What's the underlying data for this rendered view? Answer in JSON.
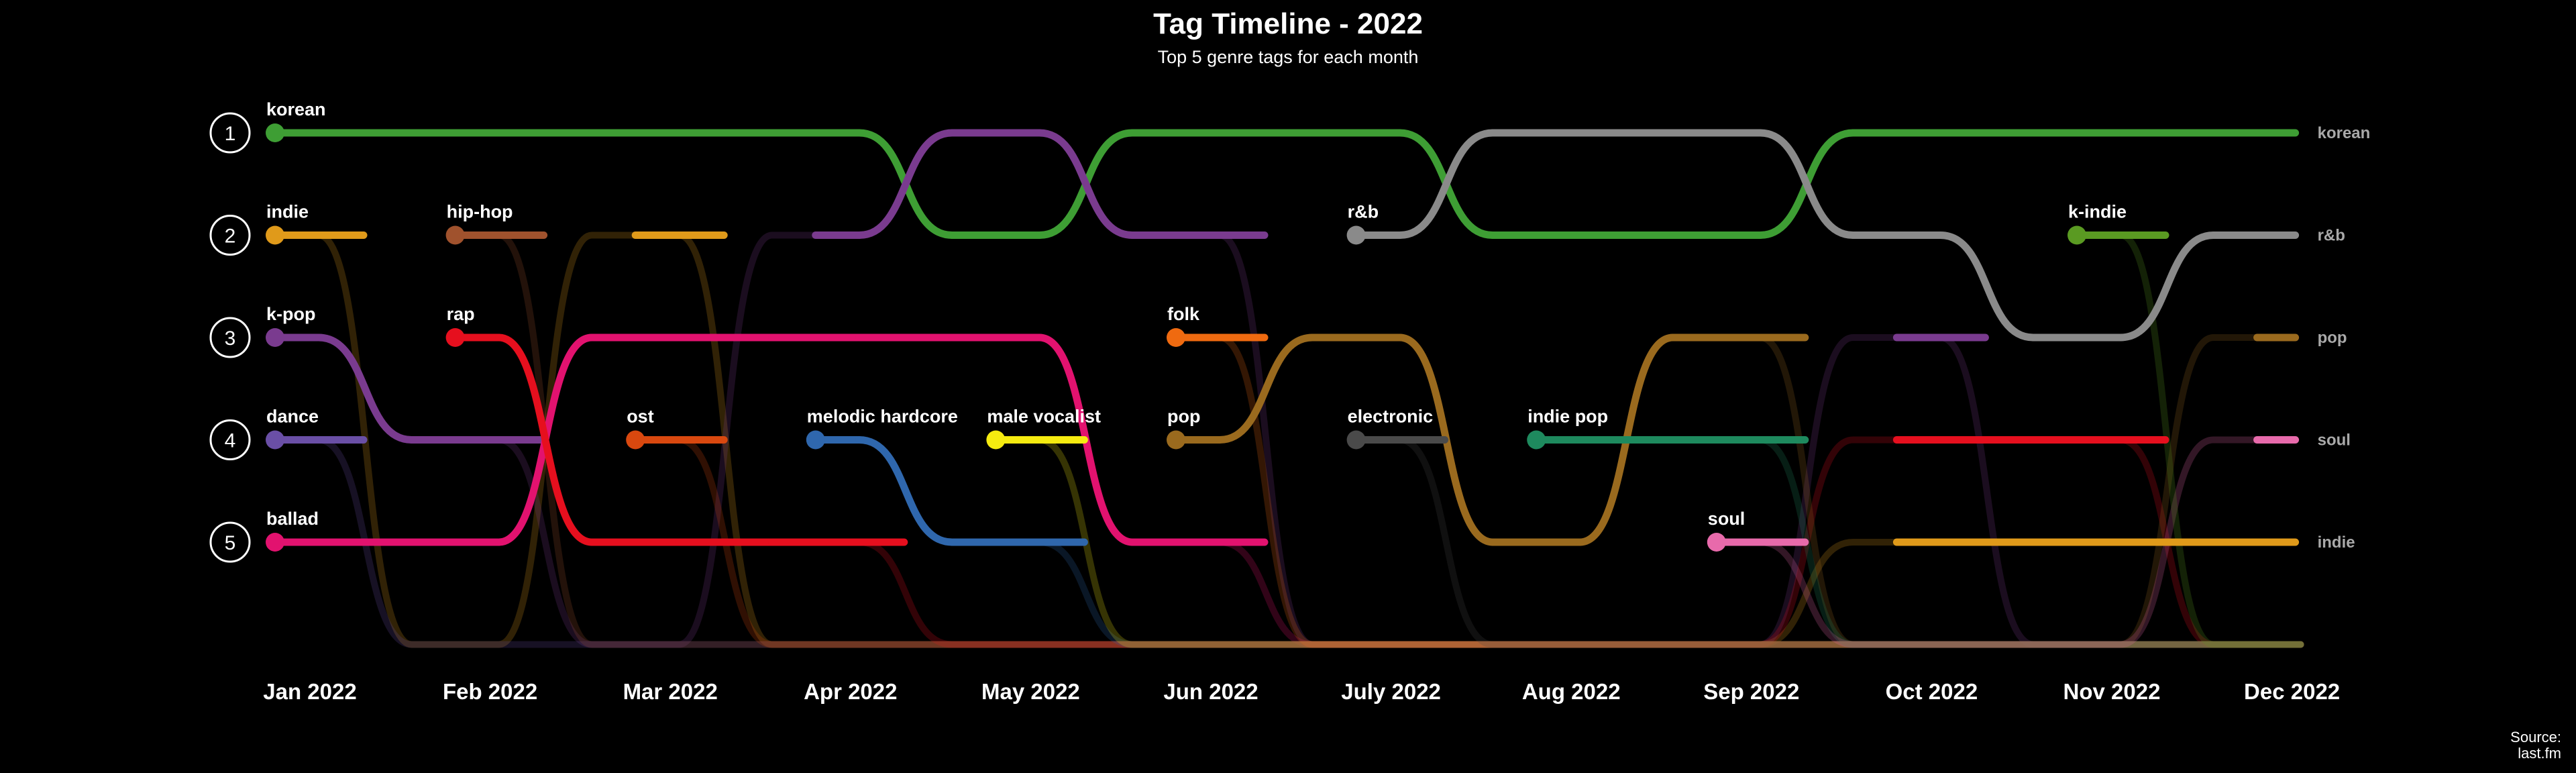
{
  "chart_data": {
    "type": "bump",
    "title": "Tag Timeline - 2022",
    "subtitle": "Top 5 genre tags for each month",
    "months": [
      "Jan 2022",
      "Feb 2022",
      "Mar 2022",
      "Apr 2022",
      "May 2022",
      "Jun 2022",
      "July 2022",
      "Aug 2022",
      "Sep 2022",
      "Oct 2022",
      "Nov 2022",
      "Dec 2022"
    ],
    "ranks": [
      "1",
      "2",
      "3",
      "4",
      "5"
    ],
    "source": [
      "Source:",
      "last.fm"
    ],
    "series": [
      {
        "name": "korean",
        "color": "#3e9e34",
        "ranks": [
          1,
          1,
          1,
          1,
          2,
          1,
          1,
          2,
          2,
          1,
          1,
          1
        ]
      },
      {
        "name": "indie",
        "color": "#e09a1a",
        "ranks": [
          2,
          6,
          2,
          6,
          6,
          6,
          6,
          6,
          6,
          5,
          5,
          5
        ]
      },
      {
        "name": "k-pop",
        "color": "#7a3b8f",
        "ranks": [
          3,
          4,
          6,
          2,
          1,
          2,
          6,
          6,
          6,
          3,
          6,
          6
        ]
      },
      {
        "name": "dance",
        "color": "#6a4fa6",
        "ranks": [
          4,
          6,
          6,
          6,
          6,
          6,
          6,
          6,
          6,
          6,
          6,
          6
        ]
      },
      {
        "name": "ballad",
        "color": "#e2126f",
        "ranks": [
          5,
          5,
          3,
          3,
          3,
          5,
          6,
          6,
          6,
          6,
          6,
          6
        ]
      },
      {
        "name": "hip-hop",
        "color": "#a0522d",
        "ranks": [
          null,
          2,
          6,
          6,
          6,
          6,
          6,
          6,
          6,
          6,
          6,
          6
        ]
      },
      {
        "name": "rap",
        "color": "#e60f1e",
        "ranks": [
          null,
          3,
          5,
          5,
          6,
          6,
          6,
          6,
          6,
          4,
          4,
          6
        ]
      },
      {
        "name": "ost",
        "color": "#d9480f",
        "ranks": [
          null,
          null,
          4,
          6,
          6,
          6,
          6,
          6,
          6,
          6,
          6,
          6
        ]
      },
      {
        "name": "melodic hardcore",
        "color": "#2f67ad",
        "ranks": [
          null,
          null,
          null,
          4,
          5,
          6,
          6,
          6,
          6,
          6,
          6,
          6
        ]
      },
      {
        "name": "male vocalist",
        "color": "#f5eb10",
        "ranks": [
          null,
          null,
          null,
          null,
          4,
          6,
          6,
          6,
          6,
          6,
          6,
          6
        ]
      },
      {
        "name": "folk",
        "color": "#ef6a10",
        "ranks": [
          null,
          null,
          null,
          null,
          null,
          3,
          6,
          6,
          6,
          6,
          6,
          6
        ]
      },
      {
        "name": "pop",
        "color": "#9a6a1e",
        "ranks": [
          null,
          null,
          null,
          null,
          null,
          4,
          3,
          5,
          3,
          6,
          6,
          3
        ]
      },
      {
        "name": "r&b",
        "color": "#8a8a8a",
        "ranks": [
          null,
          null,
          null,
          null,
          null,
          null,
          2,
          1,
          1,
          2,
          3,
          2
        ]
      },
      {
        "name": "electronic",
        "color": "#4a4a4a",
        "ranks": [
          null,
          null,
          null,
          null,
          null,
          null,
          4,
          6,
          6,
          6,
          6,
          6
        ]
      },
      {
        "name": "indie pop",
        "color": "#1e8a5e",
        "ranks": [
          null,
          null,
          null,
          null,
          null,
          null,
          null,
          4,
          4,
          6,
          6,
          6
        ]
      },
      {
        "name": "soul",
        "color": "#e86aab",
        "ranks": [
          null,
          null,
          null,
          null,
          null,
          null,
          null,
          null,
          5,
          6,
          6,
          4
        ]
      },
      {
        "name": "k-indie",
        "color": "#5a9a22",
        "ranks": [
          null,
          null,
          null,
          null,
          null,
          null,
          null,
          null,
          null,
          null,
          2,
          6
        ]
      }
    ]
  }
}
